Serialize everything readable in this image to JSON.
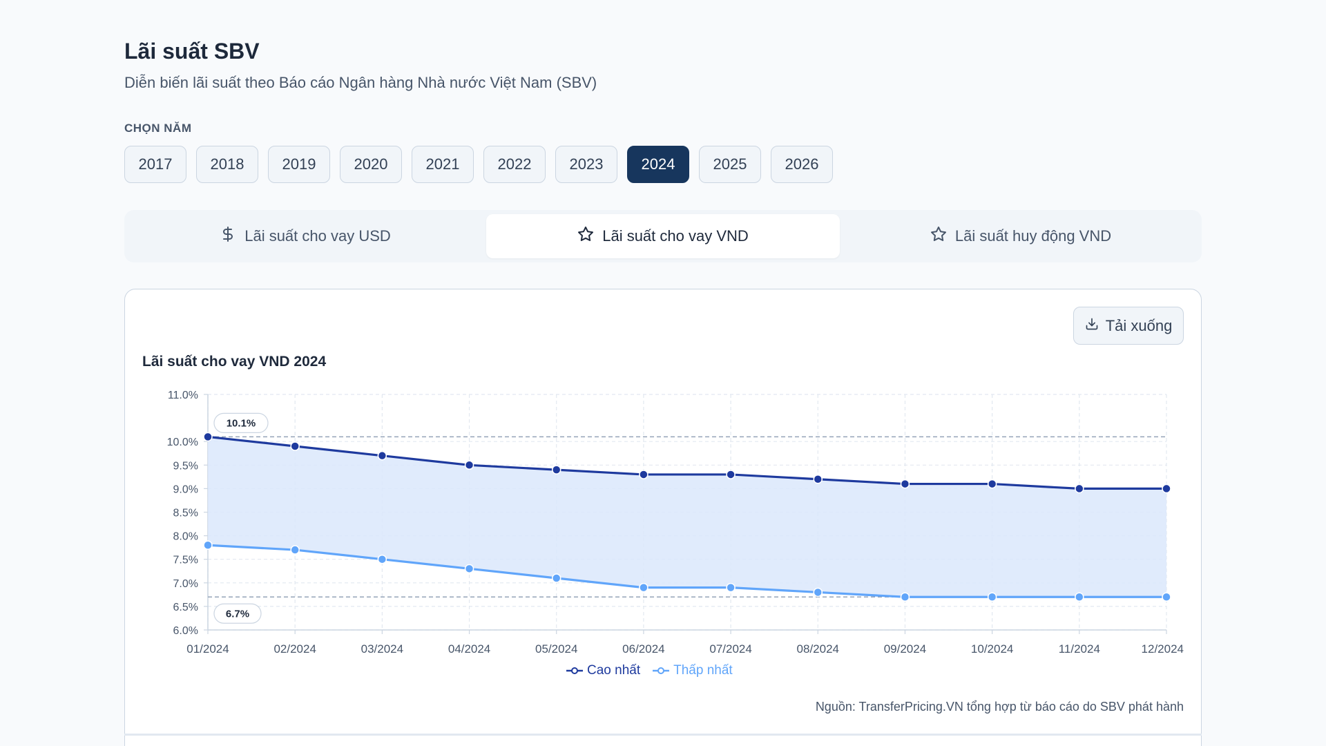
{
  "header": {
    "title": "Lãi suất SBV",
    "subtitle": "Diễn biến lãi suất theo Báo cáo Ngân hàng Nhà nước Việt Nam (SBV)"
  },
  "year_selector": {
    "label": "CHỌN NĂM",
    "years": [
      "2017",
      "2018",
      "2019",
      "2020",
      "2021",
      "2022",
      "2023",
      "2024",
      "2025",
      "2026"
    ],
    "selected": "2024"
  },
  "tabs": [
    {
      "label": "Lãi suất cho vay USD",
      "icon": "dollar-icon",
      "active": false
    },
    {
      "label": "Lãi suất cho vay VND",
      "icon": "star-icon",
      "active": true
    },
    {
      "label": "Lãi suất huy động VND",
      "icon": "star-icon",
      "active": false
    }
  ],
  "download_label": "Tải xuống",
  "source": "Nguồn: TransferPricing.VN tổng hợp từ báo cáo do SBV phát hành",
  "colors": {
    "high": "#1e3a9e",
    "low": "#60a5fa",
    "area": "#dbe7fc",
    "active_year": "#17365d"
  },
  "chart_data": {
    "type": "line",
    "title": "Lãi suất cho vay VND 2024",
    "categories": [
      "01/2024",
      "02/2024",
      "03/2024",
      "04/2024",
      "05/2024",
      "06/2024",
      "07/2024",
      "08/2024",
      "09/2024",
      "10/2024",
      "11/2024",
      "12/2024"
    ],
    "series": [
      {
        "name": "Cao nhất",
        "values": [
          10.1,
          9.9,
          9.7,
          9.5,
          9.4,
          9.3,
          9.3,
          9.2,
          9.1,
          9.1,
          9.0,
          9.0
        ]
      },
      {
        "name": "Thấp nhất",
        "values": [
          7.8,
          7.7,
          7.5,
          7.3,
          7.1,
          6.9,
          6.9,
          6.8,
          6.7,
          6.7,
          6.7,
          6.7
        ]
      }
    ],
    "y_ticks": [
      "6.0%",
      "6.5%",
      "7.0%",
      "7.5%",
      "8.0%",
      "8.5%",
      "9.0%",
      "9.5%",
      "10.0%",
      "11.0%"
    ],
    "ylim": [
      6.0,
      11.0
    ],
    "annotations": [
      {
        "label": "10.1%",
        "value": 10.1
      },
      {
        "label": "6.7%",
        "value": 6.7
      }
    ],
    "legend_position": "bottom",
    "grid": true
  }
}
